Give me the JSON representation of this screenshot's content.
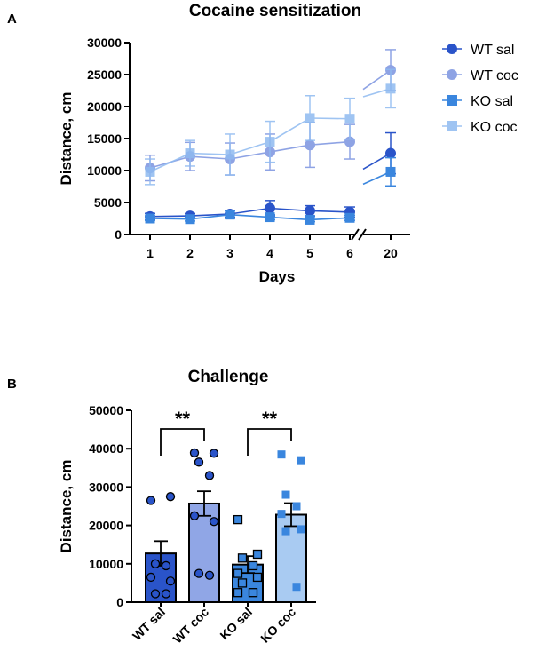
{
  "colors": {
    "wt_sal": "#2a54c9",
    "wt_coc": "#7b93e0",
    "ko_sal": "#3a86de",
    "ko_coc": "#8fbaf0",
    "bar_wt_sal": "#2a54c9",
    "bar_wt_coc": "#90a6e6",
    "bar_ko_sal": "#3a86de",
    "bar_ko_coc": "#a9cbf2",
    "dot_wt_sal": "#2a54c9",
    "dot_wt_coc": "#2a54c9",
    "dot_ko_sal": "#3a86de",
    "dot_ko_coc": "#3a86de"
  },
  "chart_data": [
    {
      "panel_label": "A",
      "type": "line",
      "title": "Cocaine sensitization",
      "xlabel": "Days",
      "ylabel": "Distance, cm",
      "ylim": [
        0,
        30000
      ],
      "yticks": [
        0,
        5000,
        10000,
        15000,
        20000,
        25000,
        30000
      ],
      "ytick_labels": [
        "0",
        "5000",
        "10000",
        "15000",
        "20000",
        "25000",
        "30000"
      ],
      "x": [
        1,
        2,
        3,
        4,
        5,
        6,
        20
      ],
      "xtick_labels": [
        "1",
        "2",
        "3",
        "4",
        "5",
        "6",
        "20"
      ],
      "axis_break": "between 6 and 20",
      "legend_position": "right",
      "series": [
        {
          "name": "WT sal",
          "marker": "circle",
          "values": [
            2800,
            2900,
            3200,
            4100,
            3700,
            3500,
            12700
          ],
          "errors": [
            500,
            400,
            500,
            1200,
            800,
            800,
            3200
          ]
        },
        {
          "name": "WT coc",
          "marker": "circle",
          "values": [
            10400,
            12200,
            11800,
            12900,
            14000,
            14500,
            25700
          ],
          "errors": [
            2000,
            2200,
            2500,
            2800,
            3500,
            2700,
            3200
          ]
        },
        {
          "name": "KO sal",
          "marker": "square",
          "values": [
            2500,
            2400,
            3100,
            2700,
            2300,
            2600,
            9800
          ],
          "errors": [
            300,
            300,
            600,
            400,
            300,
            400,
            2200
          ]
        },
        {
          "name": "KO coc",
          "marker": "square",
          "values": [
            9800,
            12700,
            12500,
            14500,
            18200,
            18100,
            22800
          ],
          "errors": [
            2000,
            2000,
            3200,
            3200,
            3500,
            3200,
            3000
          ]
        }
      ]
    },
    {
      "panel_label": "B",
      "type": "bar",
      "title": "Challenge",
      "xlabel": "",
      "ylabel": "Distance, cm",
      "ylim": [
        0,
        50000
      ],
      "yticks": [
        0,
        10000,
        20000,
        30000,
        40000,
        50000
      ],
      "ytick_labels": [
        "0",
        "10000",
        "20000",
        "30000",
        "40000",
        "50000"
      ],
      "categories": [
        "WT sal",
        "WT coc",
        "KO sal",
        "KO coc"
      ],
      "values": [
        12700,
        25700,
        9800,
        22800
      ],
      "errors": [
        3200,
        3200,
        2200,
        3000
      ],
      "points": [
        [
          26500,
          27500,
          10000,
          9500,
          6500,
          5500,
          2200,
          2200
        ],
        [
          38900,
          38800,
          36500,
          33000,
          22500,
          21000,
          7500,
          7000
        ],
        [
          21500,
          12500,
          11500,
          9500,
          7500,
          6500,
          5000,
          2500,
          2500
        ],
        [
          38500,
          37000,
          28000,
          25000,
          23000,
          19000,
          18500,
          4000
        ]
      ],
      "annotations": [
        {
          "text": "**",
          "between": [
            "WT sal",
            "WT coc"
          ]
        },
        {
          "text": "**",
          "between": [
            "KO sal",
            "KO coc"
          ]
        }
      ]
    }
  ]
}
